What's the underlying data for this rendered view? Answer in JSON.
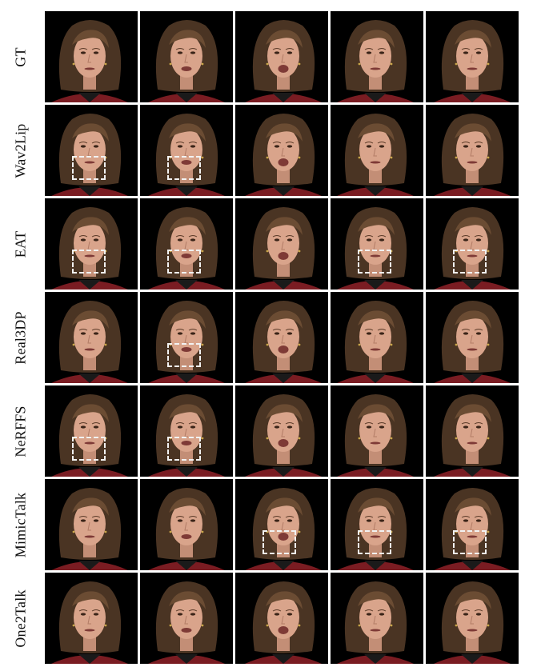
{
  "rows": [
    {
      "label": "GT",
      "boxes": []
    },
    {
      "label": "Wav2Lip",
      "boxes": [
        0,
        1
      ]
    },
    {
      "label": "EAT",
      "boxes": [
        0,
        1,
        3,
        4
      ]
    },
    {
      "label": "Real3DP",
      "boxes": [
        1
      ]
    },
    {
      "label": "NeRFFS",
      "boxes": [
        0,
        1
      ]
    },
    {
      "label": "MimicTalk",
      "boxes": [
        2,
        3,
        4
      ]
    },
    {
      "label": "One2Talk",
      "boxes": []
    }
  ],
  "columns": 5,
  "colors": {
    "background": "#000000",
    "hair": "#4a3423",
    "hair_highlight": "#6b4c33",
    "skin": "#d9a48b",
    "shirt": "#7a1c22",
    "highlight_box": "#f2f2f2"
  }
}
